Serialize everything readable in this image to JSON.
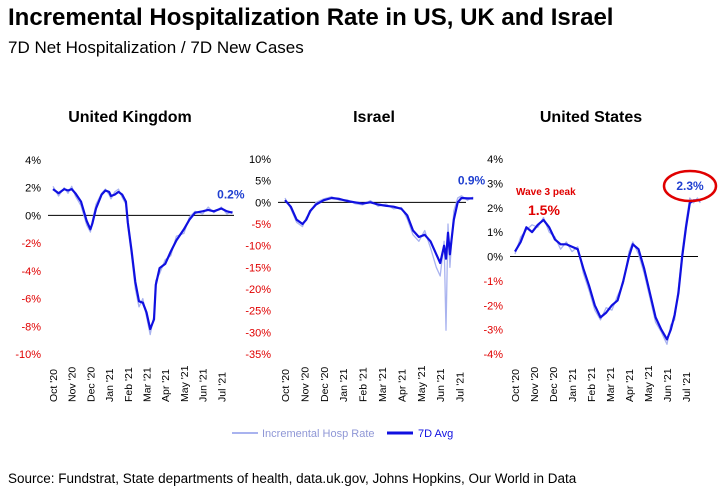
{
  "title": "Incremental Hospitalization Rate in US, UK and Israel",
  "subtitle": "7D Net Hospitalization / 7D New Cases",
  "source": "Source: Fundstrat, State departments of health, data.uk.gov, Johns Hopkins, Our World in Data",
  "legend": {
    "raw": "Incremental Hosp Rate",
    "avg": "7D Avg"
  },
  "colors": {
    "raw": "#a9b3ef",
    "avg": "#1010e0",
    "negative_tick": "#e00000",
    "annotation_red": "#e00000",
    "value_label": "#1f3fd0"
  },
  "chart_data": [
    {
      "type": "line",
      "title": "United Kingdom",
      "ylim": [
        -10,
        4
      ],
      "yticks": [
        4,
        2,
        0,
        -2,
        -4,
        -6,
        -8,
        -10
      ],
      "ytick_labels": [
        "4%",
        "2%",
        "0%",
        "-2%",
        "-4%",
        "-6%",
        "-8%",
        "-10%"
      ],
      "xtick_labels": [
        "Oct '20",
        "Nov '20",
        "Dec '20",
        "Jan '21",
        "Feb '21",
        "Mar '21",
        "Apr '21",
        "May '21",
        "Jun '21",
        "Jul '21"
      ],
      "x_month_index": [
        0,
        0.3,
        0.6,
        0.8,
        1.0,
        1.2,
        1.5,
        1.8,
        2.0,
        2.1,
        2.3,
        2.6,
        2.8,
        3.0,
        3.1,
        3.3,
        3.5,
        3.7,
        3.9,
        4.0,
        4.2,
        4.4,
        4.6,
        4.8,
        5.0,
        5.2,
        5.4,
        5.5,
        5.7,
        6.0,
        6.3,
        6.6,
        7.0,
        7.3,
        7.6,
        8.0,
        8.3,
        8.6,
        9.0,
        9.3,
        9.6
      ],
      "series": [
        {
          "name": "7D Avg",
          "values": [
            1.9,
            1.6,
            1.9,
            1.8,
            1.9,
            1.6,
            1.0,
            -0.4,
            -1.0,
            -0.6,
            0.5,
            1.5,
            1.8,
            1.7,
            1.4,
            1.5,
            1.7,
            1.5,
            1.0,
            -0.5,
            -2.5,
            -4.8,
            -6.2,
            -6.3,
            -7.0,
            -8.2,
            -7.5,
            -5.0,
            -3.8,
            -3.5,
            -2.6,
            -1.8,
            -1.0,
            -0.3,
            0.2,
            0.3,
            0.4,
            0.3,
            0.5,
            0.3,
            0.2
          ]
        },
        {
          "name": "Incremental Hosp Rate",
          "values": [
            2.1,
            1.4,
            2.0,
            1.6,
            2.1,
            1.4,
            0.7,
            -0.7,
            -1.2,
            -0.4,
            0.8,
            1.6,
            1.9,
            1.5,
            1.2,
            1.7,
            1.9,
            1.3,
            0.8,
            -0.8,
            -2.9,
            -5.3,
            -6.6,
            -6.0,
            -7.3,
            -8.6,
            -7.2,
            -4.7,
            -4.2,
            -3.2,
            -2.9,
            -1.5,
            -1.3,
            -0.1,
            0.3,
            0.1,
            0.6,
            0.2,
            0.6,
            0.1,
            0.3
          ]
        }
      ],
      "annotations": [
        {
          "text": "0.2%"
        }
      ]
    },
    {
      "type": "line",
      "title": "Israel",
      "ylim": [
        -35,
        10
      ],
      "yticks": [
        10,
        5,
        0,
        -5,
        -10,
        -15,
        -20,
        -25,
        -30,
        -35
      ],
      "ytick_labels": [
        "10%",
        "5%",
        "0%",
        "-5%",
        "-10%",
        "-15%",
        "-20%",
        "-25%",
        "-30%",
        "-35%"
      ],
      "xtick_labels": [
        "Oct '20",
        "Nov '20",
        "Dec '20",
        "Jan '21",
        "Feb '21",
        "Mar '21",
        "Apr '21",
        "May '21",
        "Jun '21",
        "Jul '21"
      ],
      "x_month_index": [
        0,
        0.3,
        0.6,
        0.9,
        1.1,
        1.3,
        1.6,
        2.0,
        2.4,
        2.8,
        3.2,
        3.6,
        4.0,
        4.4,
        4.8,
        5.2,
        5.6,
        6.0,
        6.3,
        6.6,
        6.9,
        7.2,
        7.5,
        7.8,
        8.0,
        8.2,
        8.3,
        8.4,
        8.5,
        8.7,
        8.9,
        9.1,
        9.4,
        9.7
      ],
      "series": [
        {
          "name": "7D Avg",
          "values": [
            0.5,
            -1.0,
            -4.0,
            -5.0,
            -4.0,
            -2.0,
            -0.5,
            0.5,
            1.0,
            0.8,
            0.3,
            0.0,
            -0.3,
            0.0,
            -0.5,
            -0.8,
            -1.0,
            -1.5,
            -3.0,
            -6.5,
            -8.0,
            -7.5,
            -9.0,
            -12.0,
            -14.0,
            -10.0,
            -13.0,
            -7.0,
            -12.0,
            -4.0,
            0.0,
            1.0,
            0.9,
            0.9
          ]
        },
        {
          "name": "Incremental Hosp Rate",
          "values": [
            1.0,
            -1.5,
            -4.6,
            -5.6,
            -3.5,
            -2.4,
            0.0,
            0.8,
            1.3,
            0.5,
            0.6,
            -0.3,
            -0.6,
            0.4,
            -0.9,
            -0.4,
            -1.5,
            -1.2,
            -3.8,
            -7.5,
            -9.0,
            -6.5,
            -10.5,
            -15.0,
            -17.0,
            -9.0,
            -29.5,
            -5.0,
            -15.0,
            -2.0,
            1.0,
            1.5,
            0.5,
            1.2
          ]
        }
      ],
      "annotations": [
        {
          "text": "0.9%"
        }
      ]
    },
    {
      "type": "line",
      "title": "United States",
      "ylim": [
        -4,
        4
      ],
      "yticks": [
        4,
        3,
        2,
        1,
        0,
        -1,
        -2,
        -3,
        -4
      ],
      "ytick_labels": [
        "4%",
        "3%",
        "2%",
        "1%",
        "0%",
        "-1%",
        "-2%",
        "-3%",
        "-4%"
      ],
      "xtick_labels": [
        "Oct '20",
        "Nov '20",
        "Dec '20",
        "Jan '21",
        "Feb '21",
        "Mar '21",
        "Apr '21",
        "May '21",
        "Jun '21",
        "Jul '21"
      ],
      "x_month_index": [
        0,
        0.3,
        0.6,
        0.9,
        1.2,
        1.5,
        1.8,
        2.1,
        2.4,
        2.7,
        3.0,
        3.3,
        3.6,
        3.9,
        4.2,
        4.5,
        4.8,
        5.1,
        5.4,
        5.7,
        6.0,
        6.2,
        6.5,
        6.8,
        7.1,
        7.4,
        7.7,
        8.0,
        8.2,
        8.4,
        8.6,
        8.8,
        9.0,
        9.2,
        9.4,
        9.6,
        9.75
      ],
      "series": [
        {
          "name": "7D Avg",
          "values": [
            0.2,
            0.6,
            1.2,
            1.0,
            1.3,
            1.5,
            1.2,
            0.7,
            0.5,
            0.5,
            0.4,
            0.3,
            -0.5,
            -1.2,
            -2.0,
            -2.5,
            -2.3,
            -2.0,
            -1.8,
            -1.0,
            0.0,
            0.5,
            0.3,
            -0.5,
            -1.5,
            -2.5,
            -3.0,
            -3.4,
            -3.0,
            -2.4,
            -1.5,
            0.0,
            1.2,
            2.2,
            2.3,
            2.3,
            2.3
          ]
        },
        {
          "name": "Incremental Hosp Rate",
          "values": [
            0.1,
            0.8,
            1.1,
            1.3,
            1.2,
            1.6,
            1.0,
            0.8,
            0.3,
            0.6,
            0.2,
            0.4,
            -0.7,
            -1.4,
            -2.2,
            -2.6,
            -2.1,
            -2.2,
            -1.6,
            -1.1,
            0.2,
            0.6,
            0.1,
            -0.7,
            -1.7,
            -2.7,
            -3.1,
            -3.6,
            -2.8,
            -2.6,
            -1.3,
            0.2,
            1.4,
            2.4,
            2.2,
            2.4,
            2.2
          ]
        }
      ],
      "annotations": [
        {
          "text": "Wave 3 peak"
        },
        {
          "text": "1.5%"
        },
        {
          "text": "2.3%"
        }
      ]
    }
  ]
}
